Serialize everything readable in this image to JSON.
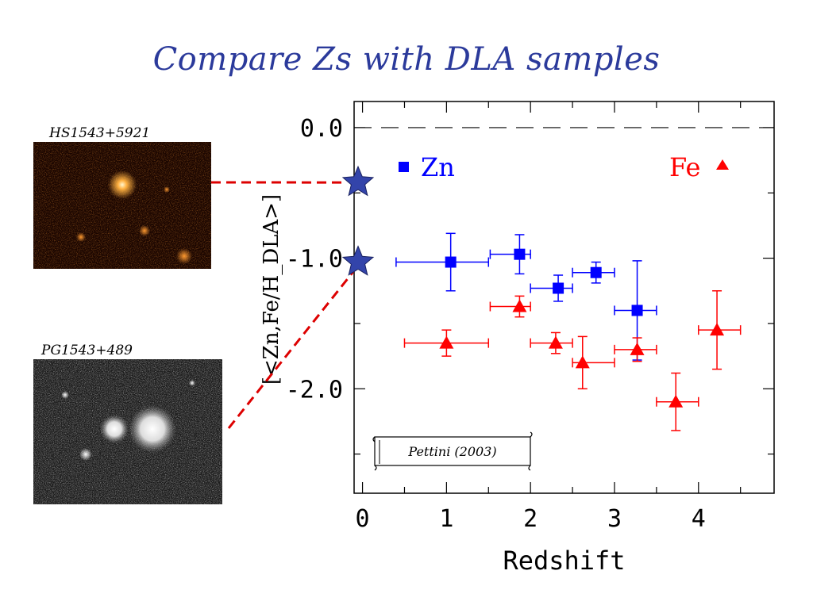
{
  "slide": {
    "title": "Compare Zs with DLA samples"
  },
  "images": [
    {
      "label": "HS1543+5921",
      "icon": "galaxy-image-orange"
    },
    {
      "label": "PG1543+489",
      "icon": "galaxy-image-gray"
    }
  ],
  "colors": {
    "zn": "#0000ff",
    "fe": "#ff0000",
    "star": "#3344aa",
    "connector": "#dd0000",
    "title": "#2b3a9b"
  },
  "chart_data": {
    "type": "scatter",
    "xlabel": "Redshift",
    "ylabel": "[<Zn,Fe/H_DLA>]",
    "xlim": [
      -0.1,
      4.9
    ],
    "ylim": [
      -2.8,
      0.2
    ],
    "xticks": [
      "0",
      "1",
      "2",
      "3",
      "4"
    ],
    "yticks": [
      "0.0",
      "-1.0",
      "-2.0"
    ],
    "reference_line": 0.0,
    "grid": false,
    "citation": "Pettini (2003)",
    "series": [
      {
        "name": "Zn",
        "marker": "square",
        "points": [
          {
            "x": 1.05,
            "y": -1.03,
            "xerr": [
              0.65,
              0.45
            ],
            "yerr": [
              0.22,
              0.22
            ]
          },
          {
            "x": 1.87,
            "y": -0.97,
            "xerr": [
              0.35,
              0.13
            ],
            "yerr": [
              0.15,
              0.15
            ]
          },
          {
            "x": 2.33,
            "y": -1.23,
            "xerr": [
              0.33,
              0.17
            ],
            "yerr": [
              0.1,
              0.1
            ]
          },
          {
            "x": 2.78,
            "y": -1.11,
            "xerr": [
              0.28,
              0.22
            ],
            "yerr": [
              0.08,
              0.08
            ]
          },
          {
            "x": 3.27,
            "y": -1.4,
            "xerr": [
              0.27,
              0.23
            ],
            "yerr": [
              0.38,
              0.38
            ]
          }
        ]
      },
      {
        "name": "Fe",
        "marker": "triangle",
        "points": [
          {
            "x": 1.0,
            "y": -1.65,
            "xerr": [
              0.5,
              0.5
            ],
            "yerr": [
              0.1,
              0.1
            ]
          },
          {
            "x": 1.87,
            "y": -1.37,
            "xerr": [
              0.35,
              0.13
            ],
            "yerr": [
              0.08,
              0.08
            ]
          },
          {
            "x": 2.3,
            "y": -1.65,
            "xerr": [
              0.3,
              0.2
            ],
            "yerr": [
              0.08,
              0.08
            ]
          },
          {
            "x": 2.62,
            "y": -1.8,
            "xerr": [
              0.12,
              0.38
            ],
            "yerr": [
              0.2,
              0.2
            ]
          },
          {
            "x": 3.27,
            "y": -1.7,
            "xerr": [
              0.27,
              0.23
            ],
            "yerr": [
              0.09,
              0.09
            ]
          },
          {
            "x": 3.73,
            "y": -2.1,
            "xerr": [
              0.23,
              0.27
            ],
            "yerr": [
              0.22,
              0.22
            ]
          },
          {
            "x": 4.22,
            "y": -1.55,
            "xerr": [
              0.22,
              0.28
            ],
            "yerr": [
              0.3,
              0.3
            ]
          }
        ]
      }
    ],
    "highlighted_values": [
      {
        "object": "HS1543+5921",
        "y": -0.42
      },
      {
        "object": "PG1543+489",
        "y": -1.03
      }
    ]
  }
}
